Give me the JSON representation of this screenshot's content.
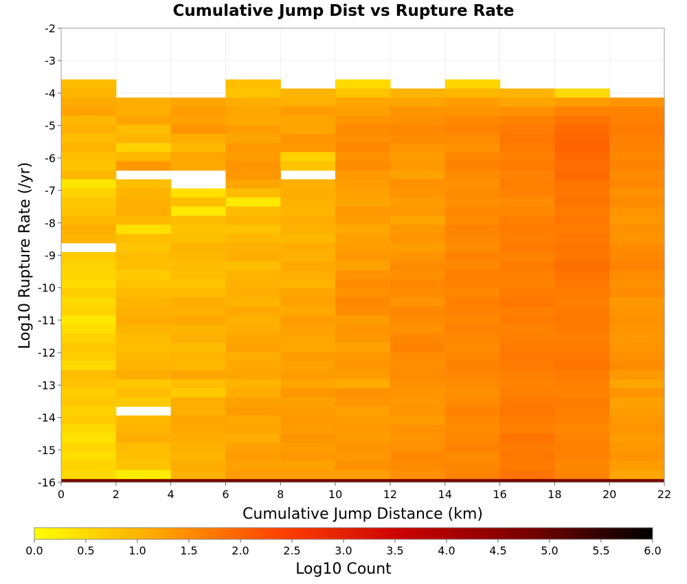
{
  "chart_data": {
    "type": "heatmap",
    "title": "Cumulative Jump Dist vs Rupture Rate",
    "xlabel": "Cumulative Jump Distance (km)",
    "ylabel": "Log10 Rupture Rate (/yr)",
    "xlim": [
      0,
      22
    ],
    "ylim": [
      -16,
      -2
    ],
    "x_bin_width": 2,
    "y_bin_height": 0.28,
    "x_ticks": [
      "0",
      "2",
      "4",
      "6",
      "8",
      "10",
      "12",
      "14",
      "16",
      "18",
      "20",
      "22"
    ],
    "y_ticks": [
      "-2",
      "-3",
      "-4",
      "-5",
      "-6",
      "-7",
      "-8",
      "-9",
      "-10",
      "-11",
      "-12",
      "-13",
      "-14",
      "-15",
      "-16"
    ],
    "grid": true,
    "colorbar": {
      "label": "Log10 Count",
      "range": [
        0,
        6
      ],
      "ticks": [
        "0.0",
        "0.5",
        "1.0",
        "1.5",
        "2.0",
        "2.5",
        "3.0",
        "3.5",
        "4.0",
        "4.5",
        "5.0",
        "5.5",
        "6.0"
      ],
      "colormap": "yellow-orange-red-black",
      "stops": [
        "#ffff00",
        "#ffa500",
        "#ff4000",
        "#c80000",
        "#780000",
        "#000000"
      ]
    },
    "columns": [
      {
        "x_start": 0,
        "x_end": 2,
        "top": -3.58,
        "values": [
          0.9,
          0.98,
          1.13,
          1.24,
          0.95,
          1.05,
          0.9,
          1.0,
          0.86,
          0.79,
          0.95,
          0.35,
          0.6,
          0.75,
          0.8,
          0.95,
          1.1,
          1.0,
          null,
          0.7,
          0.6,
          0.55,
          0.5,
          0.65,
          0.5,
          0.6,
          0.3,
          0.45,
          0.6,
          0.75,
          0.65,
          0.5,
          0.9,
          0.8,
          0.65,
          0.75,
          0.6,
          0.7,
          0.5,
          0.4,
          0.55,
          0.45,
          0.6,
          0.5,
          0.75,
          0.7,
          0.8,
          0.65,
          0.95
        ]
      },
      {
        "x_start": 2,
        "x_end": 4,
        "top": -4.14,
        "values": [
          1.1,
          1.08,
          1.22,
          0.9,
          1.0,
          0.6,
          0.95,
          1.35,
          null,
          0.85,
          1.0,
          1.05,
          1.1,
          0.95,
          0.4,
          0.85,
          0.8,
          0.9,
          0.85,
          0.7,
          0.8,
          0.9,
          1.0,
          1.05,
          1.1,
          1.0,
          0.9,
          0.85,
          0.95,
          1.0,
          1.1,
          0.75,
          0.9,
          0.7,
          null,
          0.95,
          1.0,
          1.1,
          0.9,
          0.85,
          0.8,
          0.25,
          0.8
        ]
      },
      {
        "x_start": 4,
        "x_end": 6,
        "top": -4.14,
        "values": [
          1.2,
          1.3,
          1.25,
          1.4,
          1.1,
          0.95,
          1.2,
          1.15,
          null,
          null,
          0.4,
          0.85,
          0.3,
          0.9,
          0.8,
          0.85,
          1.0,
          0.95,
          0.9,
          0.85,
          0.8,
          0.9,
          1.1,
          1.05,
          1.15,
          1.0,
          1.05,
          0.9,
          1.0,
          0.95,
          1.2,
          0.85,
          0.7,
          1.1,
          1.05,
          1.2,
          1.15,
          1.1,
          1.05,
          1.0,
          1.1,
          1.05,
          0.9
        ]
      },
      {
        "x_start": 6,
        "x_end": 8,
        "top": -3.58,
        "values": [
          0.85,
          0.8,
          1.1,
          1.2,
          1.15,
          1.3,
          1.2,
          1.35,
          1.3,
          1.4,
          1.35,
          1.2,
          0.9,
          0.3,
          0.9,
          1.0,
          0.8,
          0.95,
          1.05,
          1.1,
          0.85,
          1.0,
          1.05,
          1.1,
          1.0,
          1.15,
          1.05,
          1.1,
          1.2,
          1.25,
          1.1,
          1.15,
          1.2,
          1.0,
          1.1,
          1.25,
          1.3,
          1.15,
          1.2,
          1.1,
          1.25,
          1.3,
          1.25,
          1.3,
          1.35
        ]
      },
      {
        "x_start": 8,
        "x_end": 10,
        "top": -3.86,
        "values": [
          1.0,
          1.05,
          1.3,
          1.2,
          1.2,
          1.4,
          1.35,
          0.6,
          0.8,
          null,
          1.05,
          1.1,
          1.05,
          1.0,
          1.1,
          1.05,
          0.95,
          1.1,
          1.05,
          1.15,
          1.1,
          1.0,
          1.2,
          1.25,
          1.15,
          1.3,
          1.25,
          1.2,
          1.15,
          1.3,
          1.25,
          1.3,
          1.2,
          1.35,
          1.25,
          1.3,
          1.35,
          1.3,
          1.4,
          1.3,
          1.35,
          1.25,
          1.3,
          1.35,
          1.3,
          1.4
        ]
      },
      {
        "x_start": 10,
        "x_end": 12,
        "top": -3.58,
        "values": [
          0.5,
          0.8,
          1.2,
          1.25,
          1.4,
          1.5,
          1.45,
          1.55,
          1.45,
          1.5,
          1.35,
          1.3,
          1.25,
          1.2,
          1.35,
          1.3,
          1.15,
          1.25,
          1.3,
          1.35,
          1.25,
          1.4,
          1.5,
          1.45,
          1.55,
          1.5,
          1.3,
          1.4,
          1.35,
          1.25,
          1.35,
          1.4,
          1.3,
          1.1,
          1.45,
          1.4,
          1.25,
          1.3,
          1.35,
          1.3,
          1.4,
          1.35,
          1.45,
          1.3,
          1.4,
          1.45,
          1.5
        ]
      },
      {
        "x_start": 12,
        "x_end": 14,
        "top": -3.86,
        "values": [
          1.0,
          1.2,
          1.4,
          1.45,
          1.55,
          1.5,
          1.4,
          1.3,
          1.35,
          1.25,
          1.45,
          1.4,
          1.3,
          1.35,
          1.2,
          1.35,
          1.4,
          1.3,
          1.4,
          1.5,
          1.45,
          1.55,
          1.5,
          1.4,
          1.55,
          1.5,
          1.45,
          1.55,
          1.6,
          1.5,
          1.45,
          1.5,
          1.45,
          1.4,
          1.35,
          1.4,
          1.3,
          1.45,
          1.4,
          1.45,
          1.55,
          1.5,
          1.45,
          1.55,
          1.5,
          1.6
        ]
      },
      {
        "x_start": 14,
        "x_end": 16,
        "top": -3.58,
        "values": [
          0.55,
          0.95,
          1.3,
          1.4,
          1.55,
          1.6,
          1.5,
          1.45,
          1.55,
          1.6,
          1.5,
          1.45,
          1.5,
          1.45,
          1.55,
          1.5,
          1.6,
          1.55,
          1.5,
          1.6,
          1.55,
          1.65,
          1.6,
          1.55,
          1.65,
          1.6,
          1.55,
          1.6,
          1.55,
          1.5,
          1.55,
          1.6,
          1.55,
          1.5,
          1.45,
          1.5,
          1.6,
          1.55,
          1.5,
          1.55,
          1.6,
          1.5,
          1.55,
          1.6,
          1.5,
          1.55,
          1.6
        ]
      },
      {
        "x_start": 16,
        "x_end": 18,
        "top": -3.86,
        "values": [
          1.0,
          1.2,
          1.45,
          1.6,
          1.7,
          1.75,
          1.7,
          1.65,
          1.7,
          1.6,
          1.65,
          1.6,
          1.5,
          1.55,
          1.65,
          1.7,
          1.65,
          1.7,
          1.6,
          1.7,
          1.65,
          1.6,
          1.7,
          1.75,
          1.65,
          1.7,
          1.6,
          1.65,
          1.7,
          1.75,
          1.7,
          1.65,
          1.6,
          1.65,
          1.7,
          1.75,
          1.7,
          1.65,
          1.8,
          1.7,
          1.75,
          1.7,
          1.8,
          1.65,
          1.6
        ]
      },
      {
        "x_start": 18,
        "x_end": 20,
        "top": -3.86,
        "values": [
          0.5,
          1.3,
          1.6,
          1.8,
          1.9,
          1.95,
          2.0,
          1.9,
          1.85,
          1.9,
          1.8,
          1.75,
          1.8,
          1.7,
          1.75,
          1.7,
          1.75,
          1.8,
          1.75,
          1.85,
          1.8,
          1.75,
          1.7,
          1.65,
          1.7,
          1.75,
          1.7,
          1.65,
          1.7,
          1.75,
          1.8,
          1.7,
          1.65,
          1.6,
          1.7,
          1.65,
          1.6,
          1.55,
          1.6,
          1.65,
          1.6,
          1.55,
          1.6,
          1.7,
          1.65
        ]
      },
      {
        "x_start": 20,
        "x_end": 22,
        "top": -4.14,
        "values": [
          1.4,
          1.6,
          1.65,
          1.7,
          1.65,
          1.6,
          1.55,
          1.6,
          1.5,
          1.55,
          1.45,
          1.5,
          1.4,
          1.35,
          1.45,
          1.4,
          1.5,
          1.55,
          1.6,
          1.5,
          1.45,
          1.5,
          1.35,
          1.4,
          1.45,
          1.4,
          1.35,
          1.4,
          1.45,
          1.5,
          1.35,
          1.2,
          1.4,
          1.25,
          1.3,
          1.35,
          1.4,
          1.3,
          1.35,
          1.4,
          1.3,
          1.2
        ]
      }
    ],
    "bottom_row": {
      "y_start": -16,
      "y_end": -15.9,
      "value": 4.8
    }
  }
}
